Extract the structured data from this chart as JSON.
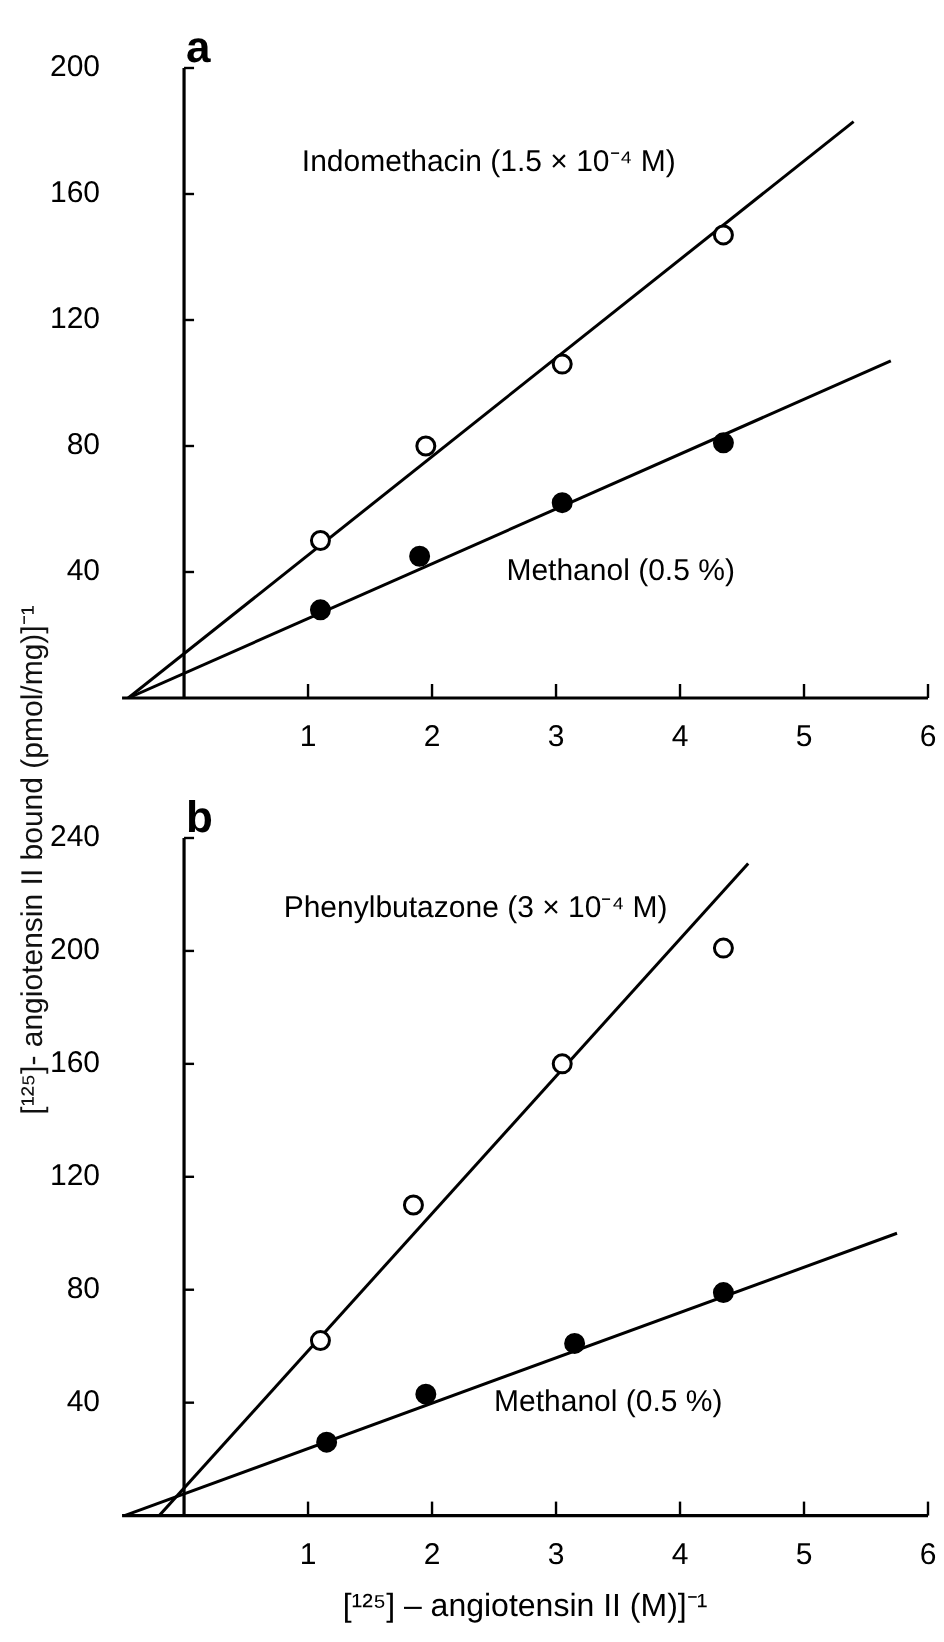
{
  "chart_data": [
    {
      "type": "scatter",
      "title": "a",
      "xlim": [
        -0.5,
        6
      ],
      "xticks": [
        1,
        2,
        3,
        4,
        5,
        6
      ],
      "ylim": [
        0,
        200
      ],
      "yticks": [
        40,
        80,
        120,
        160,
        200
      ],
      "grid": false,
      "legend": false,
      "marker": "circle",
      "x": [
        1.1,
        1.95,
        3.05,
        4.35
      ],
      "series": [
        {
          "name": "Indomethacin (1.5 × 10⁻⁴ M)",
          "color": "#000000",
          "values": [
            50,
            80,
            106,
            147
          ]
        },
        {
          "type": "line",
          "marker": "none",
          "color": "#000000",
          "x": [
            -0.45,
            5.4
          ],
          "values": [
            0,
            183
          ]
        },
        {
          "name": "Methanol (0.5 %)",
          "color": "#000000",
          "x": [
            1.1,
            1.9,
            3.05,
            4.35
          ],
          "values": [
            28,
            45,
            62,
            81
          ]
        },
        {
          "type": "line",
          "marker": "none",
          "color": "#000000",
          "x": [
            -0.45,
            5.7
          ],
          "values": [
            0,
            107
          ]
        }
      ]
    },
    {
      "type": "scatter",
      "title": "b",
      "xlabel": "[¹²⁵] – angiotensin II (M)]⁻¹",
      "ylabel": "[¹²⁵]- angiotensin II bound (pmol/mg)]⁻¹",
      "xlim": [
        -0.5,
        6
      ],
      "xticks": [
        1,
        2,
        3,
        4,
        5,
        6
      ],
      "ylim": [
        0,
        240
      ],
      "yticks": [
        40,
        80,
        120,
        160,
        200,
        240
      ],
      "grid": false,
      "legend": false,
      "marker": "circle",
      "x": [
        1.1,
        1.85,
        3.05,
        4.35
      ],
      "series": [
        {
          "name": "Phenylbutazone (3 × 10⁻⁴ M)",
          "color": "#000000",
          "values": [
            62,
            110,
            160,
            201
          ]
        },
        {
          "type": "line",
          "marker": "none",
          "color": "#000000",
          "x": [
            -0.2,
            4.55
          ],
          "values": [
            0,
            231
          ]
        },
        {
          "name": "Methanol (0.5 %)",
          "color": "#000000",
          "x": [
            1.15,
            1.95,
            3.15,
            4.35
          ],
          "values": [
            26,
            43,
            61,
            79
          ]
        },
        {
          "type": "line",
          "marker": "none",
          "color": "#000000",
          "x": [
            -0.48,
            5.75
          ],
          "values": [
            0,
            100
          ]
        }
      ]
    }
  ]
}
